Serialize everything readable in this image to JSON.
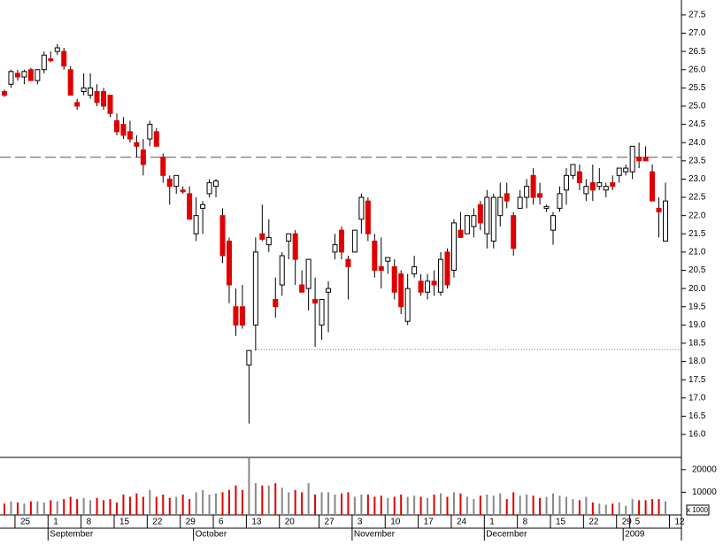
{
  "chart_data": {
    "type": "candlestick",
    "categories": [
      null,
      null,
      "25",
      null,
      null,
      null,
      null,
      "1",
      null,
      null,
      null,
      null,
      "8",
      null,
      null,
      null,
      null,
      "15",
      null,
      null,
      null,
      null,
      "22",
      null,
      null,
      null,
      null,
      "29",
      null,
      null,
      null,
      null,
      "6",
      null,
      null,
      null,
      null,
      "13",
      null,
      null,
      null,
      null,
      "20",
      null,
      null,
      null,
      null,
      null,
      "27",
      null,
      null,
      null,
      null,
      "3",
      null,
      null,
      null,
      null,
      "10",
      null,
      null,
      null,
      null,
      "17",
      null,
      null,
      null,
      null,
      "24",
      null,
      null,
      null,
      null,
      "1",
      null,
      null,
      null,
      null,
      "8",
      null,
      null,
      null,
      null,
      "15",
      null,
      null,
      null,
      null,
      "22",
      null,
      null,
      null,
      null,
      "29",
      null,
      "5",
      null,
      null,
      null,
      null,
      null,
      "12"
    ],
    "months": [
      {
        "label": "September",
        "index": 7
      },
      {
        "label": "October",
        "index": 29
      },
      {
        "label": "November",
        "index": 53
      },
      {
        "label": "December",
        "index": 73
      },
      {
        "label": "2009",
        "index": 94
      }
    ],
    "open": [
      25.4,
      25.6,
      25.9,
      25.8,
      26.0,
      25.7,
      26.0,
      26.3,
      26.5,
      26.5,
      26.0,
      25.1,
      25.4,
      25.3,
      25.4,
      25.4,
      25.3,
      24.6,
      24.5,
      24.3,
      24.0,
      23.8,
      24.1,
      24.3,
      23.6,
      23.0,
      22.8,
      22.7,
      22.6,
      21.5,
      22.2,
      22.6,
      22.8,
      22.0,
      21.3,
      19.5,
      19.5,
      17.9,
      19.0,
      21.5,
      21.2,
      19.7,
      20.1,
      21.3,
      21.5,
      20.1,
      20.0,
      19.7,
      19.0,
      19.9,
      21.0,
      21.6,
      20.8,
      21.0,
      21.9,
      22.4,
      21.3,
      20.6,
      20.75,
      20.6,
      20.4,
      19.1,
      20.4,
      20.2,
      19.9,
      20.2,
      19.9,
      21.0,
      20.5,
      21.6,
      21.5,
      21.7,
      22.3,
      21.5,
      21.3,
      22.0,
      22.6,
      22.0,
      22.2,
      22.5,
      23.1,
      22.6,
      22.2,
      21.6,
      22.2,
      22.7,
      23.1,
      23.2,
      22.6,
      22.9,
      22.8,
      22.7,
      22.9,
      23.1,
      23.2,
      23.2,
      23.6,
      23.6,
      23.2,
      22.2,
      21.3,
      null
    ],
    "high": [
      25.45,
      26.0,
      26.0,
      26.0,
      26.05,
      26.0,
      26.5,
      26.5,
      26.7,
      26.6,
      26.1,
      25.2,
      25.9,
      25.9,
      25.6,
      25.5,
      25.3,
      24.8,
      24.7,
      24.6,
      24.2,
      24.1,
      24.6,
      24.4,
      23.7,
      23.1,
      23.1,
      22.8,
      22.8,
      22.5,
      22.4,
      23.0,
      23.0,
      22.2,
      21.4,
      20.0,
      20.1,
      18.3,
      21.4,
      22.3,
      21.9,
      20.3,
      21.0,
      21.5,
      21.6,
      20.5,
      20.8,
      20.3,
      19.7,
      20.2,
      21.5,
      21.7,
      20.9,
      21.6,
      22.6,
      22.5,
      21.5,
      21.4,
      20.8,
      20.8,
      20.5,
      20.4,
      20.9,
      20.4,
      20.4,
      20.5,
      21.0,
      21.1,
      21.9,
      22.1,
      22.0,
      22.2,
      22.4,
      22.7,
      22.6,
      22.9,
      22.9,
      22.1,
      22.7,
      23.0,
      23.3,
      22.9,
      22.3,
      22.1,
      22.8,
      23.3,
      23.4,
      23.4,
      23.0,
      23.4,
      23.3,
      22.9,
      23.1,
      23.3,
      23.4,
      23.9,
      24.0,
      23.9,
      23.4,
      22.5,
      22.9,
      null
    ],
    "low": [
      25.25,
      25.5,
      25.7,
      25.6,
      25.7,
      25.6,
      25.9,
      26.2,
      26.4,
      26.0,
      25.3,
      24.9,
      25.3,
      25.2,
      25.0,
      24.9,
      24.7,
      24.2,
      24.1,
      24.0,
      23.6,
      23.1,
      23.9,
      23.9,
      22.9,
      22.3,
      22.6,
      22.6,
      21.9,
      21.3,
      21.5,
      22.5,
      22.5,
      20.7,
      19.6,
      18.7,
      18.9,
      16.3,
      18.3,
      21.3,
      21.0,
      19.2,
      19.8,
      20.8,
      20.1,
      19.9,
      19.4,
      18.4,
      18.6,
      18.8,
      20.8,
      20.8,
      19.7,
      21.0,
      21.5,
      21.3,
      20.3,
      20.0,
      20.4,
      19.7,
      19.3,
      19.0,
      20.3,
      19.8,
      19.7,
      19.8,
      19.8,
      20.0,
      20.3,
      21.4,
      21.5,
      21.4,
      21.6,
      21.1,
      21.1,
      21.7,
      22.2,
      20.9,
      22.2,
      22.2,
      22.3,
      22.3,
      22.1,
      21.2,
      22.1,
      22.3,
      23.0,
      22.7,
      22.4,
      22.4,
      22.7,
      22.5,
      22.7,
      22.9,
      23.1,
      23.0,
      23.3,
      23.5,
      22.4,
      21.4,
      21.3,
      null
    ],
    "close": [
      25.3,
      25.95,
      25.8,
      25.95,
      25.7,
      26.0,
      26.4,
      26.25,
      26.6,
      26.1,
      25.3,
      25.0,
      25.5,
      25.5,
      25.1,
      25.0,
      24.8,
      24.3,
      24.2,
      24.1,
      23.9,
      23.4,
      24.5,
      23.9,
      23.1,
      22.8,
      23.1,
      22.65,
      21.9,
      22.0,
      22.3,
      22.9,
      22.95,
      20.9,
      20.1,
      19.0,
      19.0,
      18.3,
      21.0,
      21.35,
      21.4,
      19.5,
      20.9,
      21.5,
      20.8,
      19.9,
      20.8,
      19.6,
      19.7,
      20.0,
      21.2,
      21.0,
      20.6,
      21.6,
      22.5,
      21.5,
      20.5,
      20.5,
      20.85,
      19.9,
      19.5,
      20.0,
      20.6,
      19.9,
      20.2,
      20.1,
      20.8,
      20.1,
      21.8,
      21.4,
      22.0,
      22.0,
      21.8,
      22.5,
      22.5,
      22.5,
      22.4,
      21.1,
      22.5,
      22.8,
      22.5,
      22.5,
      22.25,
      22.0,
      22.6,
      23.1,
      23.4,
      22.9,
      22.8,
      22.7,
      22.9,
      22.8,
      22.8,
      23.3,
      23.3,
      23.9,
      23.5,
      23.5,
      22.4,
      22.1,
      22.4,
      null
    ],
    "volume": [
      5000,
      6000,
      5500,
      5000,
      6000,
      6000,
      5500,
      6500,
      6000,
      7000,
      8000,
      7000,
      7500,
      6500,
      7500,
      6500,
      7000,
      5500,
      9000,
      8000,
      9500,
      8000,
      11000,
      8000,
      9000,
      7500,
      8000,
      9000,
      7000,
      10000,
      11000,
      9000,
      9500,
      10000,
      11000,
      13000,
      11000,
      25000,
      14000,
      13000,
      13000,
      14000,
      12000,
      10000,
      11000,
      10000,
      14000,
      9000,
      10000,
      10000,
      9000,
      9500,
      10000,
      8000,
      9000,
      9000,
      8000,
      8500,
      7500,
      8000,
      9000,
      8000,
      8500,
      8000,
      7500,
      9000,
      9500,
      8000,
      10000,
      9500,
      8000,
      7000,
      8500,
      9000,
      8500,
      9500,
      7000,
      10000,
      8500,
      9000,
      8500,
      7500,
      8000,
      9500,
      8500,
      8000,
      7000,
      6500,
      8000,
      5500,
      5000,
      4500,
      5000,
      5500,
      4000,
      7000,
      6500,
      6500,
      7000,
      7000,
      6000,
      null
    ],
    "up_color": "#ffffff",
    "down_color": "#e00000",
    "up_volume_color": "#888888",
    "ylim": [
      15.37,
      27.91
    ],
    "yticks": [
      {
        "value": 16,
        "label": "16.0"
      },
      {
        "value": 16.5,
        "label": "16.5"
      },
      {
        "value": 17,
        "label": "17.0"
      },
      {
        "value": 17.5,
        "label": "17.5"
      },
      {
        "value": 18,
        "label": "18.0"
      },
      {
        "value": 18.5,
        "label": "18.5"
      },
      {
        "value": 19,
        "label": "19.0"
      },
      {
        "value": 19.5,
        "label": "19.5"
      },
      {
        "value": 20,
        "label": "20.0"
      },
      {
        "value": 20.5,
        "label": "20.5"
      },
      {
        "value": 21,
        "label": "21.0"
      },
      {
        "value": 21.5,
        "label": "21.5"
      },
      {
        "value": 22,
        "label": "22.0"
      },
      {
        "value": 22.5,
        "label": "22.5"
      },
      {
        "value": 23,
        "label": "23.0"
      },
      {
        "value": 23.5,
        "label": "23.5"
      },
      {
        "value": 24,
        "label": "24.0"
      },
      {
        "value": 24.5,
        "label": "24.5"
      },
      {
        "value": 25,
        "label": "25.0"
      },
      {
        "value": 25.5,
        "label": "25.5"
      },
      {
        "value": 26,
        "label": "26.0"
      },
      {
        "value": 26.5,
        "label": "26.5"
      },
      {
        "value": 27,
        "label": "27.0"
      },
      {
        "value": 27.5,
        "label": "27.5"
      }
    ],
    "y2lim": [
      0,
      25000
    ],
    "y2ticks": [
      10000,
      20000
    ],
    "volume_unit": "x 1000",
    "hlines": [
      {
        "value": 23.6,
        "style": "dashed"
      },
      {
        "value": 18.33,
        "style": "dotted",
        "from_index": 38
      }
    ]
  }
}
